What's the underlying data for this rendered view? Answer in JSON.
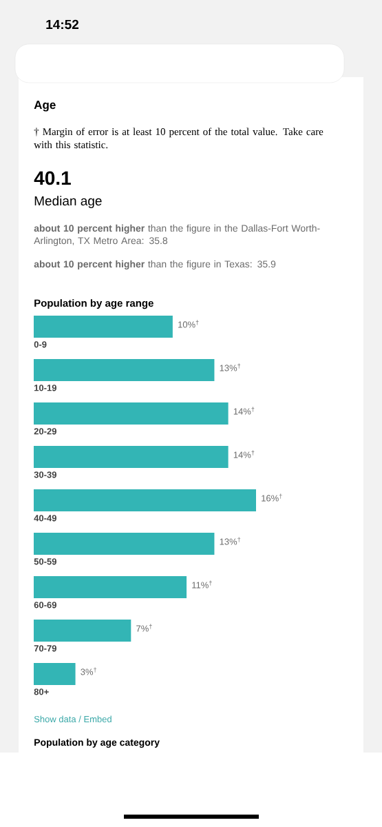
{
  "chart_data": {
    "type": "bar",
    "orientation": "horizontal",
    "title": "Population by age range",
    "categories": [
      "0-9",
      "10-19",
      "20-29",
      "30-39",
      "40-49",
      "50-59",
      "60-69",
      "70-79",
      "80+"
    ],
    "values": [
      10,
      13,
      14,
      14,
      16,
      13,
      11,
      7,
      3
    ],
    "value_labels": [
      "10%$^{†}$",
      "13%$^{†}$",
      "14%$^{†}$",
      "14%$^{†}$",
      "16%$^{†}$",
      "13%$^{†}$",
      "11%$^{†}$",
      "7%$^{†}$",
      "3%$^{†}$"
    ],
    "color": "#33b5b5",
    "annotations": [
      "14:52",
      "Age",
      "† Margin of error is at least 10 percent of the total value. Take care with this statistic.",
      "40.1",
      "Median age",
      "**about 10 percent higher** than the figure in the Dallas-Fort Worth-Arlington, TX Metro Area: 35.8",
      "**about 10 percent higher** than the figure in Texas: 35.9",
      "Show data / Embed",
      "Population by age category"
    ]
  }
}
